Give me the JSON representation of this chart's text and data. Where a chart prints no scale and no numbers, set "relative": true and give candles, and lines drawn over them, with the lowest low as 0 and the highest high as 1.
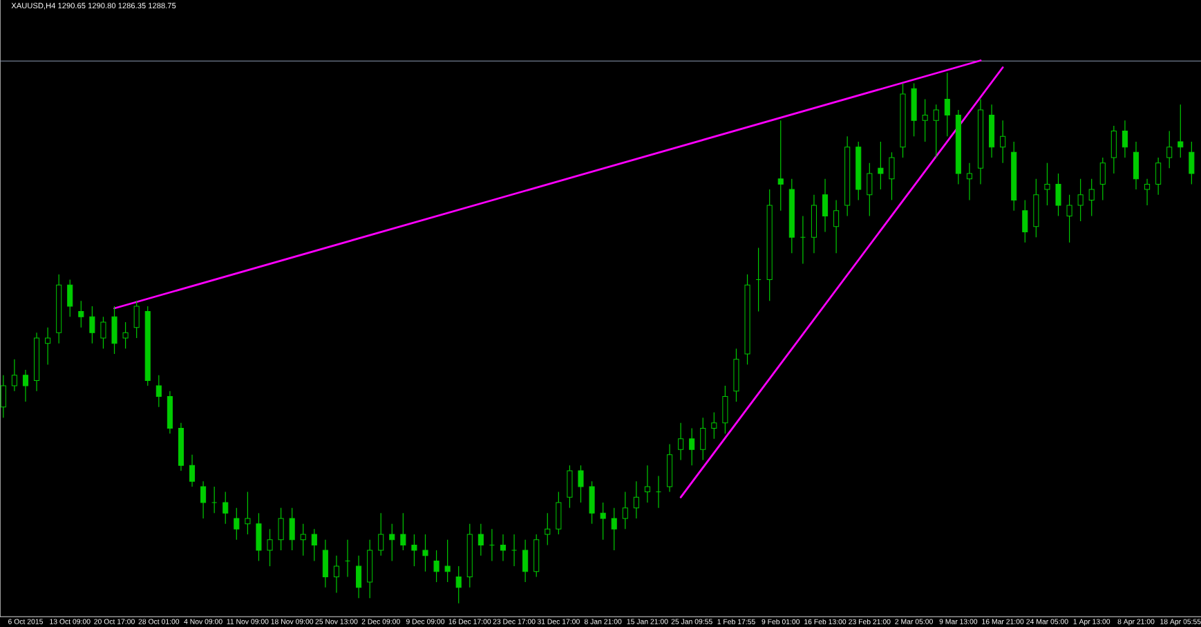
{
  "chart_data": {
    "type": "candlestick",
    "title": "XAUUSD,H4 1290.65 1290.80 1286.35 1288.75",
    "relative": true,
    "color": "#00cc00",
    "categories": [
      null,
      null,
      "6 Oct 2015",
      null,
      null,
      null,
      "13 Oct 09:00",
      null,
      null,
      null,
      "20 Oct 17:00",
      null,
      null,
      null,
      "28 Oct 01:00",
      null,
      null,
      null,
      "4 Nov 09:00",
      null,
      null,
      null,
      "11 Nov 09:00",
      null,
      null,
      null,
      "18 Nov 09:00",
      null,
      null,
      null,
      "25 Nov 13:00",
      null,
      null,
      null,
      "2 Dec 09:00",
      null,
      null,
      null,
      "9 Dec 09:00",
      null,
      null,
      null,
      "16 Dec 17:00",
      null,
      null,
      null,
      "23 Dec 17:00",
      null,
      null,
      null,
      "31 Dec 17:00",
      null,
      null,
      null,
      "8 Jan 21:00",
      null,
      null,
      null,
      "15 Jan 21:00",
      null,
      null,
      null,
      "25 Jan 09:55",
      null,
      null,
      null,
      "1 Feb 17:55",
      null,
      null,
      null,
      "9 Feb 01:00",
      null,
      null,
      null,
      "16 Feb 13:00",
      null,
      null,
      null,
      "23 Feb 21:00",
      null,
      null,
      null,
      "2 Mar 05:00",
      null,
      null,
      null,
      "9 Mar 13:00",
      null,
      null,
      null,
      "16 Mar 21:00",
      null,
      null,
      null,
      "24 Mar 05:00",
      null,
      null,
      null,
      "1 Apr 13:00",
      null,
      null,
      null,
      "8 Apr 21:00",
      null,
      null,
      null,
      "18 Apr 05:55",
      null
    ],
    "ohlc": [
      [
        0.37,
        0.43,
        0.35,
        0.41
      ],
      [
        0.41,
        0.46,
        0.4,
        0.43
      ],
      [
        0.43,
        0.44,
        0.38,
        0.41
      ],
      [
        0.42,
        0.51,
        0.4,
        0.5
      ],
      [
        0.49,
        0.52,
        0.45,
        0.5
      ],
      [
        0.51,
        0.62,
        0.49,
        0.6
      ],
      [
        0.6,
        0.61,
        0.54,
        0.56
      ],
      [
        0.55,
        0.57,
        0.52,
        0.54
      ],
      [
        0.54,
        0.56,
        0.49,
        0.51
      ],
      [
        0.5,
        0.54,
        0.48,
        0.53
      ],
      [
        0.54,
        0.56,
        0.47,
        0.49
      ],
      [
        0.5,
        0.53,
        0.48,
        0.51
      ],
      [
        0.52,
        0.57,
        0.5,
        0.56
      ],
      [
        0.55,
        0.56,
        0.41,
        0.42
      ],
      [
        0.41,
        0.43,
        0.37,
        0.39
      ],
      [
        0.39,
        0.4,
        0.32,
        0.33
      ],
      [
        0.33,
        0.34,
        0.25,
        0.26
      ],
      [
        0.26,
        0.28,
        0.22,
        0.23
      ],
      [
        0.22,
        0.23,
        0.16,
        0.19
      ],
      [
        0.19,
        0.22,
        0.17,
        0.19
      ],
      [
        0.19,
        0.21,
        0.15,
        0.17
      ],
      [
        0.16,
        0.18,
        0.12,
        0.14
      ],
      [
        0.15,
        0.21,
        0.13,
        0.16
      ],
      [
        0.15,
        0.17,
        0.08,
        0.1
      ],
      [
        0.1,
        0.14,
        0.07,
        0.12
      ],
      [
        0.12,
        0.18,
        0.1,
        0.16
      ],
      [
        0.16,
        0.18,
        0.1,
        0.12
      ],
      [
        0.12,
        0.15,
        0.09,
        0.13
      ],
      [
        0.13,
        0.14,
        0.08,
        0.11
      ],
      [
        0.1,
        0.12,
        0.03,
        0.05
      ],
      [
        0.05,
        0.09,
        0.02,
        0.07
      ],
      [
        0.08,
        0.12,
        0.05,
        0.08
      ],
      [
        0.07,
        0.09,
        0.01,
        0.03
      ],
      [
        0.04,
        0.12,
        0.01,
        0.1
      ],
      [
        0.1,
        0.17,
        0.09,
        0.13
      ],
      [
        0.13,
        0.15,
        0.08,
        0.12
      ],
      [
        0.13,
        0.17,
        0.1,
        0.11
      ],
      [
        0.11,
        0.13,
        0.07,
        0.1
      ],
      [
        0.1,
        0.13,
        0.06,
        0.09
      ],
      [
        0.08,
        0.1,
        0.04,
        0.06
      ],
      [
        0.07,
        0.12,
        0.04,
        0.06
      ],
      [
        0.05,
        0.07,
        0.0,
        0.03
      ],
      [
        0.05,
        0.15,
        0.03,
        0.13
      ],
      [
        0.13,
        0.15,
        0.09,
        0.11
      ],
      [
        0.11,
        0.14,
        0.08,
        0.11
      ],
      [
        0.11,
        0.13,
        0.08,
        0.1
      ],
      [
        0.1,
        0.13,
        0.07,
        0.1
      ],
      [
        0.1,
        0.12,
        0.04,
        0.06
      ],
      [
        0.06,
        0.13,
        0.05,
        0.12
      ],
      [
        0.13,
        0.17,
        0.11,
        0.14
      ],
      [
        0.14,
        0.21,
        0.13,
        0.19
      ],
      [
        0.2,
        0.26,
        0.18,
        0.25
      ],
      [
        0.25,
        0.26,
        0.19,
        0.22
      ],
      [
        0.22,
        0.23,
        0.15,
        0.17
      ],
      [
        0.17,
        0.19,
        0.12,
        0.16
      ],
      [
        0.16,
        0.18,
        0.1,
        0.14
      ],
      [
        0.16,
        0.21,
        0.14,
        0.18
      ],
      [
        0.18,
        0.23,
        0.16,
        0.2
      ],
      [
        0.21,
        0.26,
        0.19,
        0.22
      ],
      [
        0.21,
        0.24,
        0.18,
        0.21
      ],
      [
        0.22,
        0.3,
        0.21,
        0.28
      ],
      [
        0.29,
        0.34,
        0.27,
        0.31
      ],
      [
        0.31,
        0.33,
        0.26,
        0.29
      ],
      [
        0.29,
        0.35,
        0.27,
        0.33
      ],
      [
        0.33,
        0.36,
        0.31,
        0.34
      ],
      [
        0.34,
        0.41,
        0.32,
        0.39
      ],
      [
        0.4,
        0.48,
        0.38,
        0.46
      ],
      [
        0.47,
        0.62,
        0.45,
        0.6
      ],
      [
        0.61,
        0.67,
        0.55,
        0.61
      ],
      [
        0.61,
        0.78,
        0.57,
        0.75
      ],
      [
        0.8,
        0.91,
        0.74,
        0.79
      ],
      [
        0.78,
        0.8,
        0.66,
        0.69
      ],
      [
        0.69,
        0.73,
        0.64,
        0.69
      ],
      [
        0.69,
        0.77,
        0.66,
        0.75
      ],
      [
        0.77,
        0.8,
        0.7,
        0.73
      ],
      [
        0.71,
        0.76,
        0.66,
        0.74
      ],
      [
        0.75,
        0.88,
        0.73,
        0.86
      ],
      [
        0.86,
        0.87,
        0.76,
        0.78
      ],
      [
        0.77,
        0.83,
        0.73,
        0.81
      ],
      [
        0.82,
        0.87,
        0.78,
        0.81
      ],
      [
        0.8,
        0.85,
        0.76,
        0.84
      ],
      [
        0.86,
        0.98,
        0.84,
        0.96
      ],
      [
        0.97,
        0.98,
        0.88,
        0.91
      ],
      [
        0.91,
        0.95,
        0.87,
        0.92
      ],
      [
        0.91,
        0.94,
        0.84,
        0.93
      ],
      [
        0.95,
        1.0,
        0.88,
        0.92
      ],
      [
        0.92,
        0.93,
        0.79,
        0.81
      ],
      [
        0.8,
        0.83,
        0.76,
        0.81
      ],
      [
        0.82,
        0.95,
        0.79,
        0.93
      ],
      [
        0.92,
        0.94,
        0.84,
        0.86
      ],
      [
        0.86,
        0.91,
        0.83,
        0.88
      ],
      [
        0.85,
        0.87,
        0.74,
        0.76
      ],
      [
        0.74,
        0.76,
        0.68,
        0.7
      ],
      [
        0.71,
        0.8,
        0.69,
        0.77
      ],
      [
        0.78,
        0.83,
        0.75,
        0.79
      ],
      [
        0.79,
        0.81,
        0.73,
        0.75
      ],
      [
        0.73,
        0.77,
        0.68,
        0.75
      ],
      [
        0.75,
        0.8,
        0.72,
        0.77
      ],
      [
        0.76,
        0.8,
        0.73,
        0.78
      ],
      [
        0.79,
        0.84,
        0.76,
        0.83
      ],
      [
        0.84,
        0.9,
        0.81,
        0.89
      ],
      [
        0.89,
        0.91,
        0.84,
        0.86
      ],
      [
        0.85,
        0.87,
        0.78,
        0.8
      ],
      [
        0.78,
        0.8,
        0.75,
        0.79
      ],
      [
        0.79,
        0.84,
        0.77,
        0.83
      ],
      [
        0.84,
        0.89,
        0.82,
        0.86
      ],
      [
        0.87,
        0.94,
        0.84,
        0.86
      ],
      [
        0.85,
        0.87,
        0.79,
        0.81
      ]
    ],
    "series": [
      {
        "type": "line",
        "color": "#ff00ff",
        "values": [
          null,
          null,
          null,
          null,
          null,
          null,
          null,
          null,
          null,
          null,
          0.556,
          null,
          null,
          null,
          null,
          null,
          null,
          null,
          null,
          null,
          null,
          null,
          null,
          null,
          null,
          null,
          null,
          null,
          null,
          null,
          null,
          null,
          null,
          null,
          null,
          null,
          null,
          null,
          null,
          null,
          null,
          null,
          null,
          null,
          null,
          null,
          null,
          null,
          null,
          null,
          null,
          null,
          null,
          null,
          null,
          null,
          null,
          null,
          null,
          null,
          null,
          null,
          null,
          null,
          null,
          null,
          null,
          null,
          null,
          null,
          null,
          null,
          null,
          null,
          null,
          null,
          null,
          null,
          null,
          null,
          null,
          null,
          null,
          null,
          null,
          null,
          null,
          null,
          1.023,
          null,
          null,
          null,
          null,
          null,
          null,
          null,
          null,
          null,
          null,
          null,
          null,
          null,
          null,
          null,
          null,
          null,
          null,
          null
        ]
      },
      {
        "type": "line",
        "color": "#ff00ff",
        "values": [
          null,
          null,
          null,
          null,
          null,
          null,
          null,
          null,
          null,
          null,
          null,
          null,
          null,
          null,
          null,
          null,
          null,
          null,
          null,
          null,
          null,
          null,
          null,
          null,
          null,
          null,
          null,
          null,
          null,
          null,
          null,
          null,
          null,
          null,
          null,
          null,
          null,
          null,
          null,
          null,
          null,
          null,
          null,
          null,
          null,
          null,
          null,
          null,
          null,
          null,
          null,
          null,
          null,
          null,
          null,
          null,
          null,
          null,
          null,
          null,
          null,
          0.2,
          null,
          null,
          null,
          null,
          null,
          null,
          null,
          null,
          null,
          null,
          null,
          null,
          null,
          null,
          null,
          null,
          null,
          null,
          null,
          null,
          null,
          null,
          null,
          null,
          null,
          null,
          null,
          null,
          1.01,
          null,
          null,
          null,
          null,
          null,
          null,
          null,
          null,
          null,
          null,
          null,
          null,
          null,
          null,
          null,
          null,
          null
        ]
      }
    ],
    "ref_lines": [
      {
        "axis": "y",
        "value": 1.022,
        "color": "#8c9cb4"
      }
    ]
  }
}
